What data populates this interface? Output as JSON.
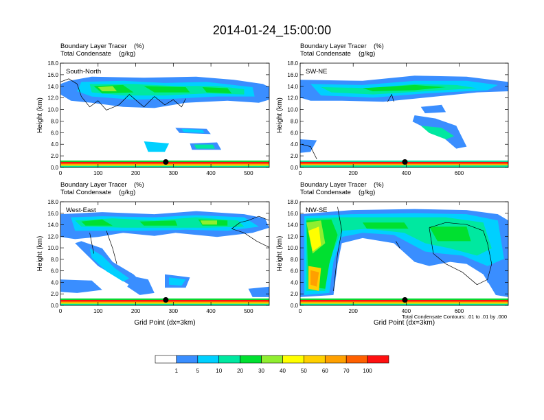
{
  "figure": {
    "title": "2014-01-24_15:00:00",
    "contour_note": "Total Condensate Contours: .01 to .01 by .000"
  },
  "colorbar": {
    "colors": [
      "#ffffff",
      "#3a8eff",
      "#00d0ff",
      "#00e8a0",
      "#00e030",
      "#90ee30",
      "#ffff00",
      "#ffd000",
      "#ffa000",
      "#ff6000",
      "#ff1010"
    ],
    "labels": [
      "1",
      "5",
      "10",
      "20",
      "30",
      "40",
      "50",
      "60",
      "70",
      "100"
    ]
  },
  "chart_data": [
    {
      "type": "heatmap",
      "panel_label": "South-North",
      "subtitle_left": [
        "Boundary Layer Tracer",
        "Total Condensate"
      ],
      "subtitle_units": [
        "(%)",
        "(g/kg)"
      ],
      "xlabel": "",
      "ylabel": "Height (km)",
      "xlim": [
        0,
        555
      ],
      "ylim": [
        0,
        18
      ],
      "xticks": [
        "0",
        "100",
        "200",
        "300",
        "400",
        "500"
      ],
      "xtick_values": [
        0,
        100,
        200,
        300,
        400,
        500
      ],
      "yticks": [
        "0.0",
        "2.0",
        "4.0",
        "6.0",
        "8.0",
        "10.0",
        "12.0",
        "14.0",
        "16.0",
        "18.0"
      ],
      "marker_x": 280
    },
    {
      "type": "heatmap",
      "panel_label": "SW-NE",
      "subtitle_left": [
        "Boundary Layer Tracer",
        "Total Condensate"
      ],
      "subtitle_units": [
        "(%)",
        "(g/kg)"
      ],
      "xlabel": "",
      "ylabel": "Height (km)",
      "xlim": [
        0,
        785
      ],
      "ylim": [
        0,
        18
      ],
      "xticks": [
        "0",
        "200",
        "400",
        "600"
      ],
      "xtick_values": [
        0,
        200,
        400,
        600
      ],
      "yticks": [
        "0.0",
        "2.0",
        "4.0",
        "6.0",
        "8.0",
        "10.0",
        "12.0",
        "14.0",
        "16.0",
        "18.0"
      ],
      "marker_x": 395
    },
    {
      "type": "heatmap",
      "panel_label": "West-East",
      "subtitle_left": [
        "Boundary Layer Tracer",
        "Total Condensate"
      ],
      "subtitle_units": [
        "(%)",
        "(g/kg)"
      ],
      "xlabel": "Grid Point (dx=3km)",
      "ylabel": "Height (km)",
      "xlim": [
        0,
        555
      ],
      "ylim": [
        0,
        18
      ],
      "xticks": [
        "0",
        "100",
        "200",
        "300",
        "400",
        "500"
      ],
      "xtick_values": [
        0,
        100,
        200,
        300,
        400,
        500
      ],
      "yticks": [
        "0.0",
        "2.0",
        "4.0",
        "6.0",
        "8.0",
        "10.0",
        "12.0",
        "14.0",
        "16.0",
        "18.0"
      ],
      "marker_x": 280
    },
    {
      "type": "heatmap",
      "panel_label": "NW-SE",
      "subtitle_left": [
        "Boundary Layer Tracer",
        "Total Condensate"
      ],
      "subtitle_units": [
        "(%)",
        "(g/kg)"
      ],
      "xlabel": "Grid Point (dx=3km)",
      "ylabel": "Height (km)",
      "xlim": [
        0,
        785
      ],
      "ylim": [
        0,
        18
      ],
      "xticks": [
        "0",
        "200",
        "400",
        "600"
      ],
      "xtick_values": [
        0,
        200,
        400,
        600
      ],
      "yticks": [
        "0.0",
        "2.0",
        "4.0",
        "6.0",
        "8.0",
        "10.0",
        "12.0",
        "14.0",
        "16.0",
        "18.0"
      ],
      "marker_x": 395
    }
  ]
}
